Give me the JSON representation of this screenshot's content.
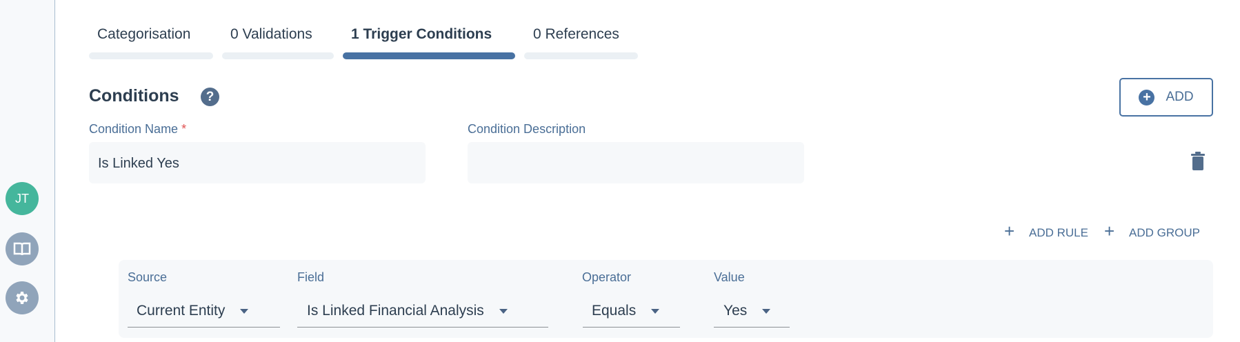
{
  "sidebar": {
    "avatar_initials": "JT",
    "avatar_color": "#45b69c",
    "icons": [
      "book-icon",
      "gear-icon"
    ]
  },
  "tabs": [
    {
      "label": "Categorisation",
      "active": false
    },
    {
      "label": "0 Validations",
      "active": false
    },
    {
      "label": "1 Trigger Conditions",
      "active": true
    },
    {
      "label": "0 References",
      "active": false
    }
  ],
  "section": {
    "title": "Conditions",
    "add_label": "ADD"
  },
  "condition": {
    "name_label": "Condition Name",
    "required_mark": "*",
    "name_value": "Is Linked Yes",
    "description_label": "Condition Description",
    "description_value": ""
  },
  "rules": {
    "add_rule": "ADD RULE",
    "add_group": "ADD GROUP",
    "row": {
      "source_label": "Source",
      "source_value": "Current Entity",
      "field_label": "Field",
      "field_value": "Is Linked Financial Analysis",
      "operator_label": "Operator",
      "operator_value": "Equals",
      "value_label": "Value",
      "value_value": "Yes"
    }
  },
  "colors": {
    "accent": "#4872a3",
    "required": "#e05252"
  }
}
